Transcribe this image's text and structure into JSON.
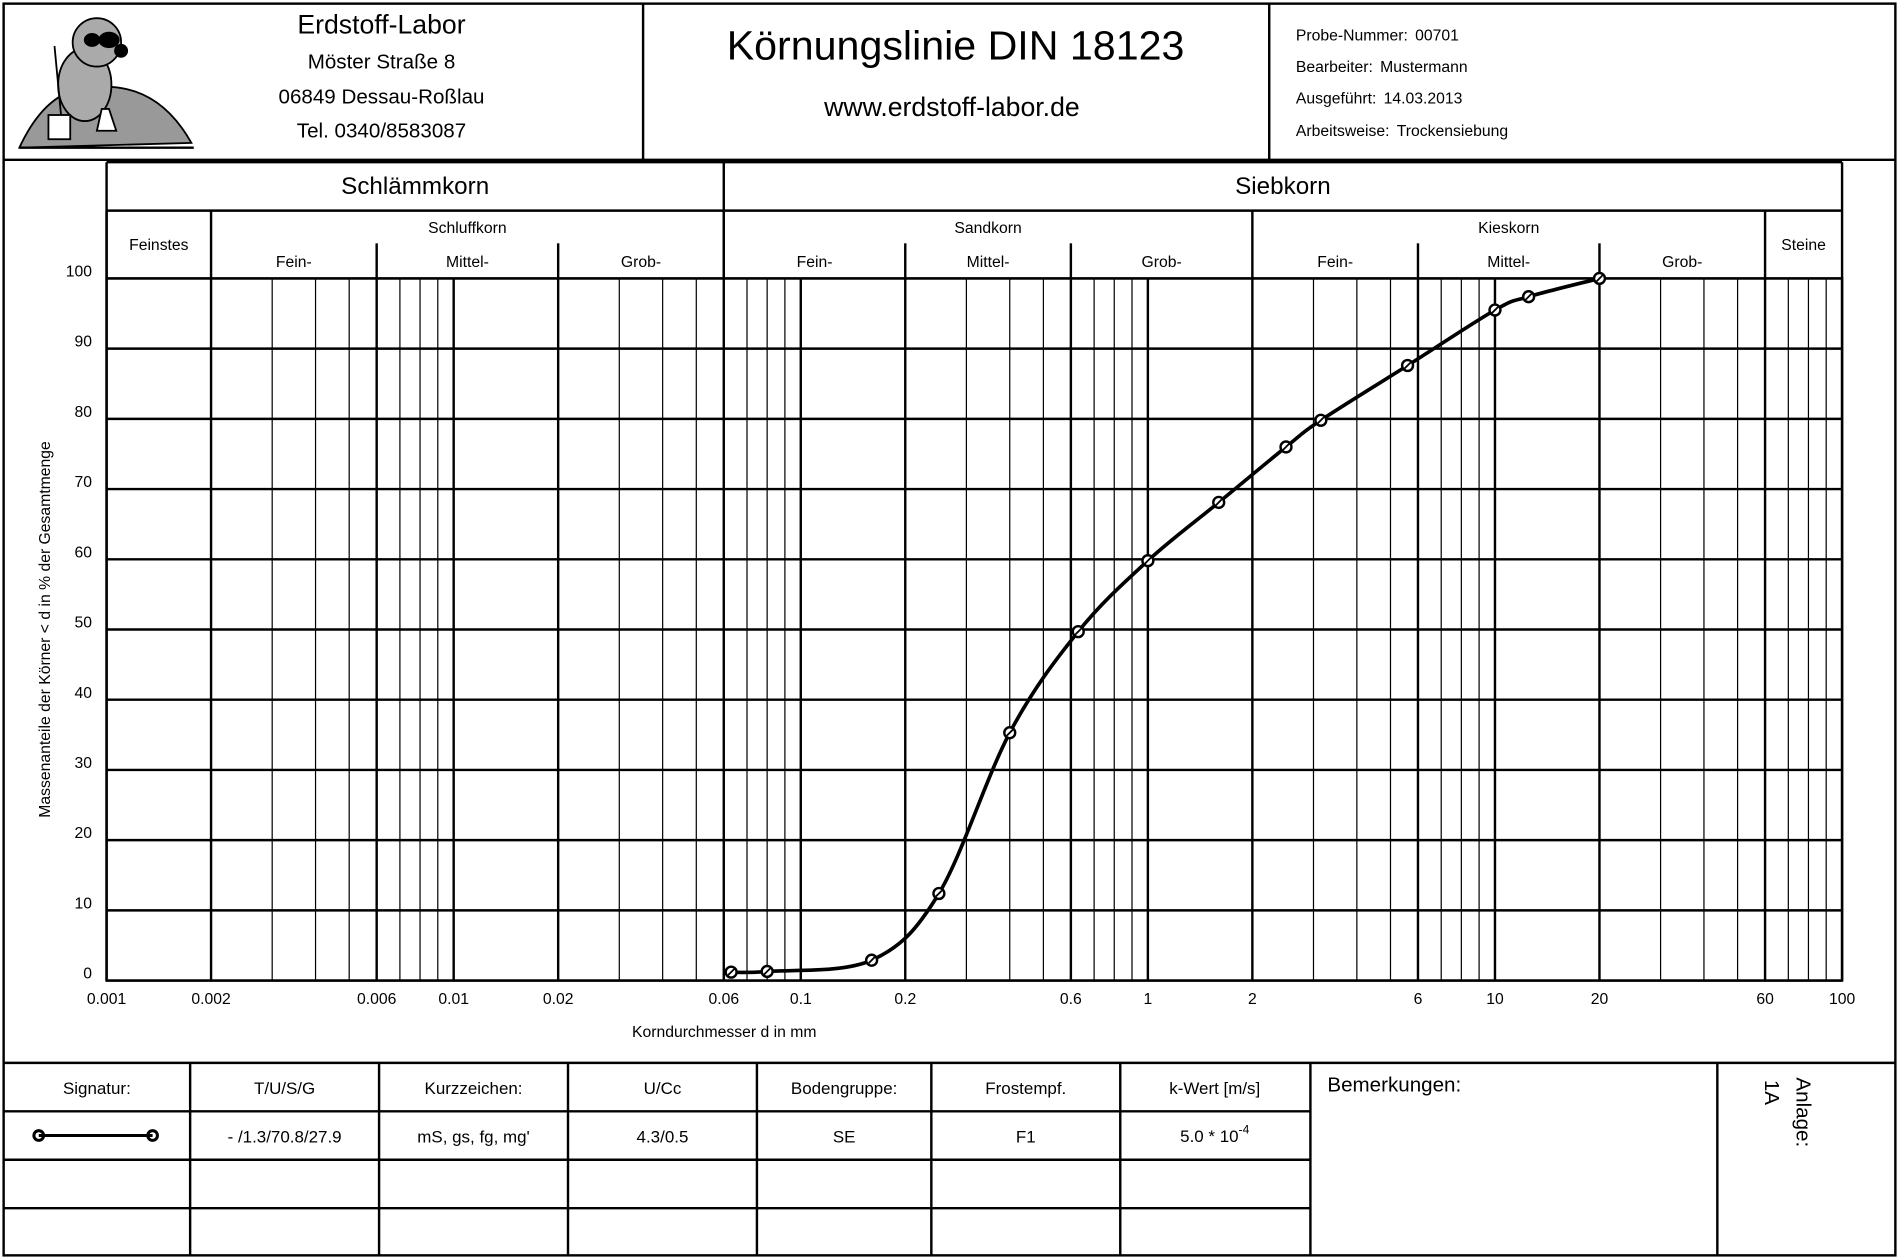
{
  "header": {
    "lab_name": "Erdstoff-Labor",
    "street": "Möster Straße 8",
    "city": "06849 Dessau-Roßlau",
    "phone": "Tel. 0340/8583087",
    "title": "Körnungslinie DIN 18123",
    "website": "www.erdstoff-labor.de",
    "fields": [
      {
        "label": "Probe-Nummer:",
        "value": "00701"
      },
      {
        "label": "Bearbeiter:",
        "value": "Mustermann"
      },
      {
        "label": "Ausgeführt:",
        "value": "14.03.2013"
      },
      {
        "label": "Arbeitsweise:",
        "value": "Trockensiebung"
      }
    ]
  },
  "chart_data": {
    "type": "line",
    "x_scale": "log",
    "xlabel": "Korndurchmesser d in mm",
    "ylabel": "Massenanteile der Körner < d in % der Gesamtmenge",
    "soil_groups": [
      "Schlämmkorn",
      "Siebkorn"
    ],
    "soil_types": [
      {
        "name": "Feinstes"
      },
      {
        "name": "Schluffkorn",
        "fractions": [
          "Fein-",
          "Mittel-",
          "Grob-"
        ]
      },
      {
        "name": "Sandkorn",
        "fractions": [
          "Fein-",
          "Mittel-",
          "Grob-"
        ]
      },
      {
        "name": "Kieskorn",
        "fractions": [
          "Fein-",
          "Mittel-",
          "Grob-"
        ]
      },
      {
        "name": "Steine"
      }
    ],
    "x": [
      0.063,
      0.08,
      0.16,
      0.25,
      0.4,
      0.63,
      1,
      1.6,
      2.5,
      3.15,
      5.6,
      10,
      12.5,
      20
    ],
    "series": [
      {
        "color": "#000000",
        "values": [
          1.2,
          1.3,
          2.9,
          12.4,
          35.3,
          49.7,
          59.8,
          68.1,
          76.0,
          79.8,
          87.6,
          95.5,
          97.4,
          100
        ]
      }
    ],
    "xlim": [
      0.001,
      100
    ],
    "ylim": [
      0,
      100
    ],
    "xticks": [
      0.001,
      0.002,
      0.006,
      0.01,
      0.02,
      0.06,
      0.1,
      0.2,
      0.6,
      1,
      2,
      6,
      10,
      20,
      60,
      100
    ],
    "yticks": [
      0,
      10,
      20,
      30,
      40,
      50,
      60,
      70,
      80,
      90,
      100
    ],
    "grid": true,
    "minor_grid": true
  },
  "table": {
    "headers": [
      "Signatur:",
      "T/U/S/G",
      "Kurzzeichen:",
      "U/Cc",
      "Bodengruppe:",
      "Frostempf.",
      "k-Wert [m/s]"
    ],
    "row": {
      "composition": "- /1.3/70.8/27.9",
      "code": "mS, gs, fg, mg'",
      "uniformity": "4.3/0.5",
      "soil_group": "SE",
      "frost": "F1",
      "k_value": {
        "mantissa": "5.0 * 10",
        "exponent": "-4"
      }
    },
    "remarks_label": "Bemerkungen:",
    "annex_label": "Anlage:",
    "annex_value": "1A"
  }
}
